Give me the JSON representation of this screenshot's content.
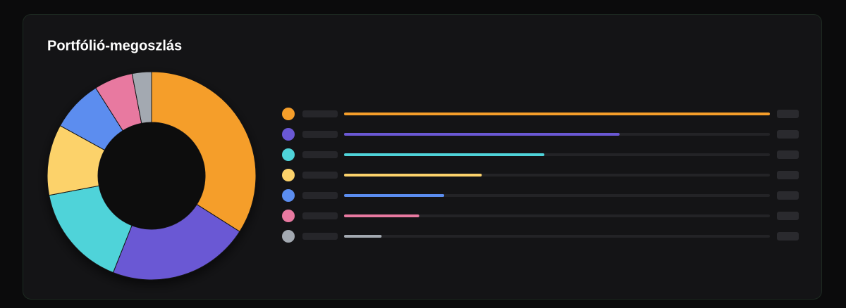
{
  "chart_data": {
    "type": "donut",
    "title": "Portfólió-megoszlás",
    "values": [
      34,
      22,
      16,
      11,
      8,
      6,
      3
    ],
    "colors": [
      "#f59e2a",
      "#6a58d4",
      "#4fd3d9",
      "#fcd26b",
      "#5b8def",
      "#e879a0",
      "#a3a9b1"
    ]
  }
}
